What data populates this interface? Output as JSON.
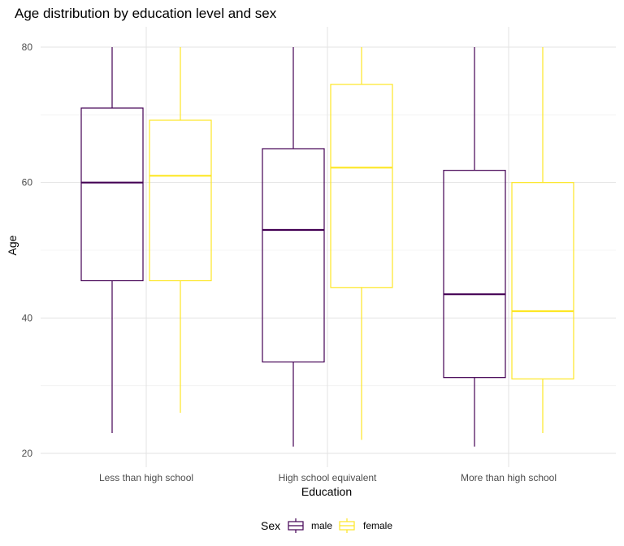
{
  "chart_data": {
    "type": "boxplot",
    "title": "Age distribution by education level and sex",
    "xlabel": "Education",
    "ylabel": "Age",
    "categories": [
      "Less than high school",
      "High school equivalent",
      "More than high school"
    ],
    "ylim": [
      20,
      80
    ],
    "y_ticks": [
      20,
      40,
      60,
      80
    ],
    "grid": true,
    "legend": {
      "title": "Sex",
      "position": "bottom"
    },
    "series": [
      {
        "name": "male",
        "color": "#440154",
        "boxes": [
          {
            "min": 23,
            "q1": 45.5,
            "median": 60,
            "q3": 71,
            "max": 80
          },
          {
            "min": 21,
            "q1": 33.5,
            "median": 53,
            "q3": 65,
            "max": 80
          },
          {
            "min": 21,
            "q1": 31.2,
            "median": 43.5,
            "q3": 61.8,
            "max": 80
          }
        ]
      },
      {
        "name": "female",
        "color": "#FDE725",
        "boxes": [
          {
            "min": 26,
            "q1": 45.5,
            "median": 61,
            "q3": 69.2,
            "max": 80
          },
          {
            "min": 22,
            "q1": 44.5,
            "median": 62.2,
            "q3": 74.5,
            "max": 80
          },
          {
            "min": 23,
            "q1": 31,
            "median": 41,
            "q3": 60,
            "max": 80
          }
        ]
      }
    ]
  }
}
